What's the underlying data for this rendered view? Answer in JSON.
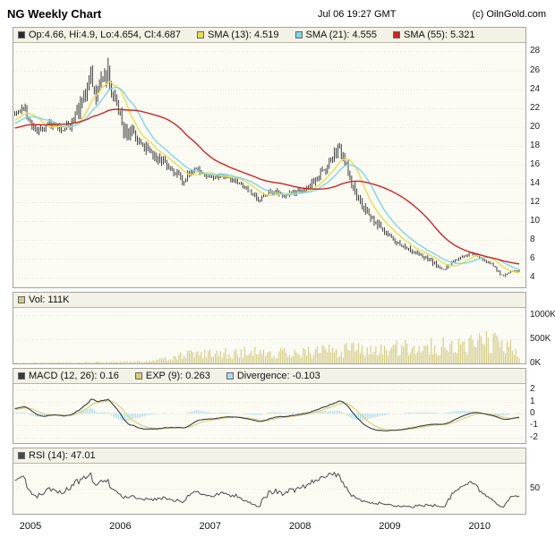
{
  "header": {
    "title": "NG Weekly Chart",
    "timestamp": "Jul 06 19:27 GMT",
    "copyright": "(c) OilnGold.com"
  },
  "legends": {
    "price": {
      "ohlc": "Op:4.66, Hi:4.9, Lo:4.654, Cl:4.687",
      "sma13": "SMA (13): 4.519",
      "sma21": "SMA (21): 4.555",
      "sma55": "SMA (55): 5.321"
    },
    "volume": {
      "vol": "Vol: 111K"
    },
    "macd": {
      "macd": "MACD (12, 26): 0.16",
      "exp": "EXP (9): 0.263",
      "divergence": "Divergence: -0.103"
    },
    "rsi": {
      "rsi": "RSI (14): 47.01"
    }
  },
  "colors": {
    "ohlc": "#2b2b2b",
    "sma13": "#e8dd55",
    "sma21": "#7ed7e6",
    "sma55": "#cc2525",
    "volume_bar": "#d2ca84",
    "macd_line": "#3a3a3a",
    "exp_line": "#d8cf7c",
    "divergence": "#a8dcec",
    "rsi_line": "#4a4a4a",
    "panel_bg": "#fbfaf3",
    "legend_bg": "#f4f2e6",
    "border": "#a6a49a",
    "grid": "#e8e5d6"
  },
  "x_axis": {
    "years": [
      "2005",
      "2006",
      "2007",
      "2008",
      "2009",
      "2010"
    ],
    "t_range": [
      2004.9,
      2010.6
    ]
  },
  "chart_data": [
    {
      "id": "price",
      "type": "candlestick",
      "title": "NG Weekly price with SMA overlays",
      "y_range": [
        3.0,
        28.9
      ],
      "y_ticks": [
        28,
        26,
        24,
        22,
        20,
        18,
        16,
        14,
        12,
        10,
        8,
        6,
        4
      ],
      "last_bar": {
        "open": 4.66,
        "high": 4.9,
        "low": 4.654,
        "close": 4.687
      },
      "overlays": [
        {
          "name": "SMA (13)",
          "period": 13,
          "color_key": "sma13",
          "last": 4.519
        },
        {
          "name": "SMA (21)",
          "period": 21,
          "color_key": "sma21",
          "last": 4.555
        },
        {
          "name": "SMA (55)",
          "period": 55,
          "color_key": "sma55",
          "last": 5.321
        }
      ],
      "close_keypoints": [
        [
          2003.8,
          19.2
        ],
        [
          2004.2,
          20.0
        ],
        [
          2004.5,
          19.2
        ],
        [
          2004.75,
          20.6
        ],
        [
          2004.95,
          21.4
        ],
        [
          2005.02,
          22.0
        ],
        [
          2005.08,
          20.6
        ],
        [
          2005.15,
          19.8
        ],
        [
          2005.22,
          19.6
        ],
        [
          2005.3,
          20.4
        ],
        [
          2005.38,
          20.0
        ],
        [
          2005.45,
          19.7
        ],
        [
          2005.52,
          20.3
        ],
        [
          2005.6,
          21.3
        ],
        [
          2005.67,
          22.6
        ],
        [
          2005.72,
          24.2
        ],
        [
          2005.77,
          25.8
        ],
        [
          2005.8,
          24.0
        ],
        [
          2005.84,
          23.6
        ],
        [
          2005.88,
          24.6
        ],
        [
          2005.93,
          26.2
        ],
        [
          2005.97,
          25.0
        ],
        [
          2006.03,
          23.2
        ],
        [
          2006.08,
          21.4
        ],
        [
          2006.14,
          19.8
        ],
        [
          2006.22,
          19.3
        ],
        [
          2006.3,
          18.4
        ],
        [
          2006.4,
          17.3
        ],
        [
          2006.5,
          16.8
        ],
        [
          2006.6,
          16.1
        ],
        [
          2006.7,
          15.2
        ],
        [
          2006.78,
          14.4
        ],
        [
          2006.86,
          15.0
        ],
        [
          2006.95,
          15.5
        ],
        [
          2007.05,
          14.9
        ],
        [
          2007.15,
          14.6
        ],
        [
          2007.25,
          15.0
        ],
        [
          2007.35,
          14.4
        ],
        [
          2007.45,
          13.7
        ],
        [
          2007.55,
          12.9
        ],
        [
          2007.63,
          12.4
        ],
        [
          2007.72,
          13.0
        ],
        [
          2007.8,
          13.2
        ],
        [
          2007.9,
          12.7
        ],
        [
          2007.97,
          12.9
        ],
        [
          2008.05,
          13.0
        ],
        [
          2008.15,
          13.5
        ],
        [
          2008.25,
          14.4
        ],
        [
          2008.35,
          15.3
        ],
        [
          2008.45,
          16.6
        ],
        [
          2008.52,
          17.7
        ],
        [
          2008.58,
          16.5
        ],
        [
          2008.65,
          14.2
        ],
        [
          2008.72,
          12.6
        ],
        [
          2008.8,
          11.2
        ],
        [
          2008.88,
          10.2
        ],
        [
          2008.95,
          9.7
        ],
        [
          2009.05,
          8.8
        ],
        [
          2009.15,
          7.9
        ],
        [
          2009.25,
          7.2
        ],
        [
          2009.35,
          6.7
        ],
        [
          2009.45,
          6.3
        ],
        [
          2009.55,
          5.8
        ],
        [
          2009.63,
          5.1
        ],
        [
          2009.7,
          4.7
        ],
        [
          2009.77,
          5.5
        ],
        [
          2009.85,
          6.1
        ],
        [
          2009.93,
          6.4
        ],
        [
          2010.02,
          6.6
        ],
        [
          2010.1,
          6.1
        ],
        [
          2010.18,
          5.6
        ],
        [
          2010.26,
          5.15
        ],
        [
          2010.33,
          4.3
        ],
        [
          2010.4,
          4.35
        ],
        [
          2010.46,
          4.8
        ],
        [
          2010.52,
          4.69
        ]
      ],
      "volatility_keypoints": [
        [
          2003.8,
          0.8
        ],
        [
          2005.0,
          0.8
        ],
        [
          2005.5,
          0.9
        ],
        [
          2005.7,
          1.6
        ],
        [
          2005.85,
          2.4
        ],
        [
          2006.0,
          2.0
        ],
        [
          2006.15,
          1.5
        ],
        [
          2006.4,
          1.0
        ],
        [
          2006.8,
          0.8
        ],
        [
          2007.2,
          0.6
        ],
        [
          2007.8,
          0.55
        ],
        [
          2008.2,
          0.7
        ],
        [
          2008.5,
          1.1
        ],
        [
          2008.75,
          1.0
        ],
        [
          2009.1,
          0.7
        ],
        [
          2009.5,
          0.45
        ],
        [
          2009.9,
          0.4
        ],
        [
          2010.2,
          0.35
        ],
        [
          2010.52,
          0.22
        ]
      ]
    },
    {
      "id": "volume",
      "type": "bar",
      "title": "Volume",
      "unit": "K",
      "y_range": [
        0,
        1150
      ],
      "y_ticks": [
        1000,
        500,
        0
      ],
      "y_tick_labels": [
        "1000K",
        "500K",
        "0K"
      ],
      "last_value": 111,
      "keypoints": [
        [
          2003.8,
          10
        ],
        [
          2005.0,
          15
        ],
        [
          2005.6,
          22
        ],
        [
          2006.0,
          35
        ],
        [
          2006.4,
          55
        ],
        [
          2006.6,
          110
        ],
        [
          2006.8,
          200
        ],
        [
          2007.0,
          230
        ],
        [
          2007.3,
          255
        ],
        [
          2007.6,
          275
        ],
        [
          2007.9,
          255
        ],
        [
          2008.1,
          280
        ],
        [
          2008.4,
          320
        ],
        [
          2008.7,
          340
        ],
        [
          2009.0,
          330
        ],
        [
          2009.2,
          390
        ],
        [
          2009.45,
          430
        ],
        [
          2009.7,
          460
        ],
        [
          2009.9,
          430
        ],
        [
          2010.05,
          480
        ],
        [
          2010.2,
          530
        ],
        [
          2010.35,
          510
        ],
        [
          2010.45,
          420
        ],
        [
          2010.52,
          140
        ]
      ]
    },
    {
      "id": "macd",
      "type": "macd",
      "title": "MACD",
      "fast": 12,
      "slow": 26,
      "signal": 9,
      "y_range": [
        -2.45,
        2.45
      ],
      "y_ticks": [
        2,
        1,
        0,
        -1,
        -2
      ],
      "last": {
        "macd": 0.16,
        "exp": 0.263,
        "divergence": -0.103
      }
    },
    {
      "id": "rsi",
      "type": "rsi",
      "title": "RSI",
      "period": 14,
      "y_range": [
        3,
        97
      ],
      "y_ticks": [
        50
      ],
      "last": 47.01
    }
  ]
}
